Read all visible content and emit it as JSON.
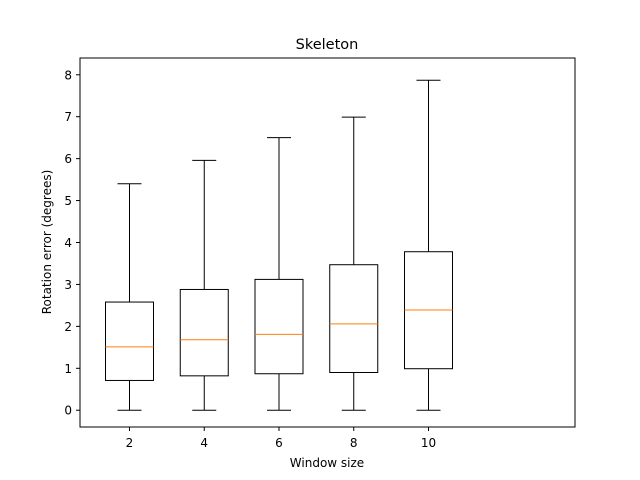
{
  "chart_data": {
    "type": "box",
    "title": "Skeleton",
    "xlabel": "Window size",
    "ylabel": "Rotation error (degrees)",
    "categories": [
      "2",
      "4",
      "6",
      "8",
      "10"
    ],
    "ylim": [
      -0.4,
      8.4
    ],
    "yticks": [
      "0",
      "1",
      "2",
      "3",
      "4",
      "5",
      "6",
      "7",
      "8"
    ],
    "grid": false,
    "boxes": [
      {
        "category": "2",
        "whisker_low": 0,
        "q1": 0.71,
        "median": 1.51,
        "q3": 2.58,
        "whisker_high": 5.4
      },
      {
        "category": "4",
        "whisker_low": 0,
        "q1": 0.82,
        "median": 1.68,
        "q3": 2.88,
        "whisker_high": 5.96
      },
      {
        "category": "6",
        "whisker_low": 0,
        "q1": 0.87,
        "median": 1.81,
        "q3": 3.12,
        "whisker_high": 6.5
      },
      {
        "category": "8",
        "whisker_low": 0,
        "q1": 0.9,
        "median": 2.06,
        "q3": 3.47,
        "whisker_high": 6.99
      },
      {
        "category": "10",
        "whisker_low": 0,
        "q1": 0.99,
        "median": 2.39,
        "q3": 3.78,
        "whisker_high": 7.87
      }
    ],
    "colors": {
      "box": "#000000",
      "median": "#ff7f0e",
      "whisker": "#000000"
    }
  }
}
